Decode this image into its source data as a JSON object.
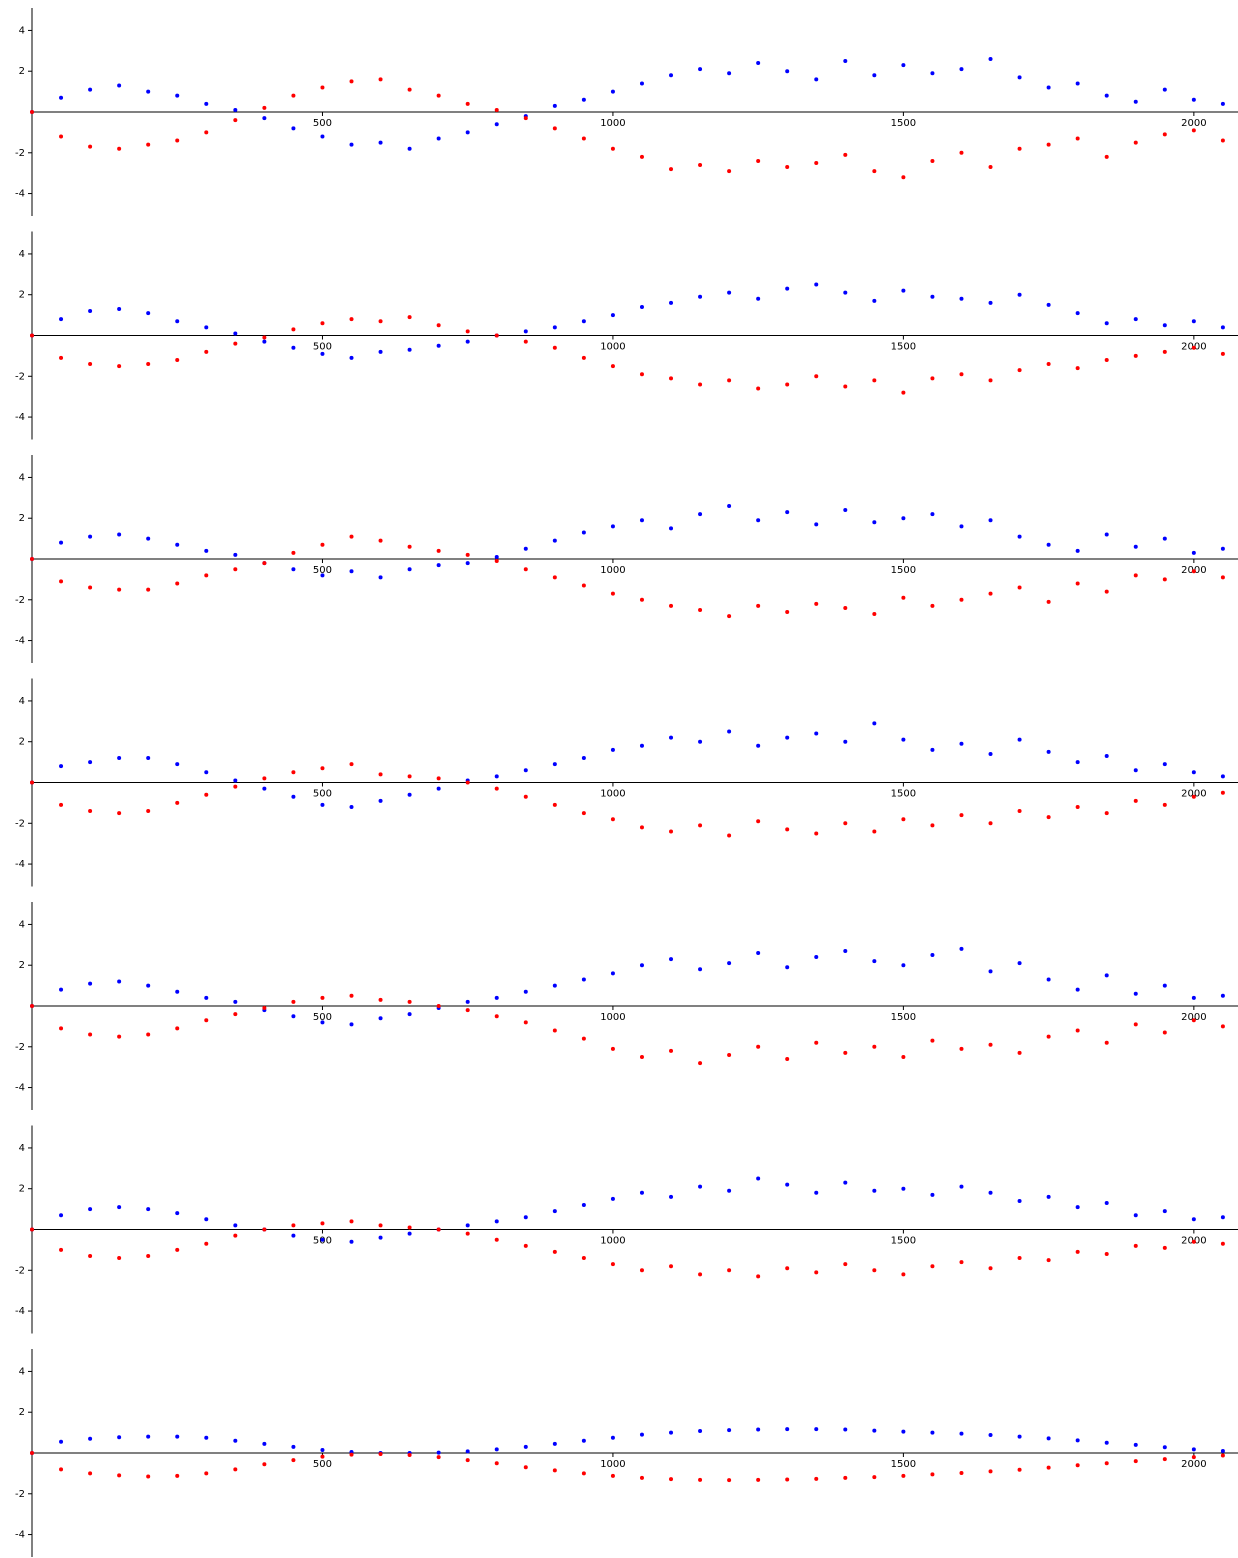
{
  "chart_data": [
    {
      "type": "scatter",
      "xlim": [
        0,
        2076
      ],
      "ylim": [
        -5.1,
        5.1
      ],
      "xticks": [
        500,
        1000,
        1500,
        2000
      ],
      "yticks": [
        -4,
        -2,
        2,
        4
      ],
      "x": [
        0,
        50,
        100,
        150,
        200,
        250,
        300,
        350,
        400,
        450,
        500,
        550,
        600,
        650,
        700,
        750,
        800,
        850,
        900,
        950,
        1000,
        1050,
        1100,
        1150,
        1200,
        1250,
        1300,
        1350,
        1400,
        1450,
        1500,
        1550,
        1600,
        1650,
        1700,
        1750,
        1800,
        1850,
        1900,
        1950,
        2000,
        2050
      ],
      "series": [
        {
          "color": "#0000ff",
          "values": [
            0,
            0.7,
            1.1,
            1.3,
            1.0,
            0.8,
            0.4,
            0.1,
            -0.3,
            -0.8,
            -1.2,
            -1.6,
            -1.5,
            -1.8,
            -1.3,
            -1.0,
            -0.6,
            -0.2,
            0.3,
            0.6,
            1.0,
            1.4,
            1.8,
            2.1,
            1.9,
            2.4,
            2.0,
            1.6,
            2.5,
            1.8,
            2.3,
            1.9,
            2.1,
            2.6,
            1.7,
            1.2,
            1.4,
            0.8,
            0.5,
            1.1,
            0.6,
            0.4
          ]
        },
        {
          "color": "#ff0000",
          "values": [
            0,
            -1.2,
            -1.7,
            -1.8,
            -1.6,
            -1.4,
            -1.0,
            -0.4,
            0.2,
            0.8,
            1.2,
            1.5,
            1.6,
            1.1,
            0.8,
            0.4,
            0.1,
            -0.3,
            -0.8,
            -1.3,
            -1.8,
            -2.2,
            -2.8,
            -2.6,
            -2.9,
            -2.4,
            -2.7,
            -2.5,
            -2.1,
            -2.9,
            -3.2,
            -2.4,
            -2.0,
            -2.7,
            -1.8,
            -1.6,
            -1.3,
            -2.2,
            -1.5,
            -1.1,
            -0.9,
            -1.4
          ]
        }
      ]
    },
    {
      "type": "scatter",
      "xlim": [
        0,
        2076
      ],
      "ylim": [
        -5.1,
        5.1
      ],
      "xticks": [
        500,
        1000,
        1500,
        2000
      ],
      "yticks": [
        -4,
        -2,
        2,
        4
      ],
      "x": [
        0,
        50,
        100,
        150,
        200,
        250,
        300,
        350,
        400,
        450,
        500,
        550,
        600,
        650,
        700,
        750,
        800,
        850,
        900,
        950,
        1000,
        1050,
        1100,
        1150,
        1200,
        1250,
        1300,
        1350,
        1400,
        1450,
        1500,
        1550,
        1600,
        1650,
        1700,
        1750,
        1800,
        1850,
        1900,
        1950,
        2000,
        2050
      ],
      "series": [
        {
          "color": "#0000ff",
          "values": [
            0,
            0.8,
            1.2,
            1.3,
            1.1,
            0.7,
            0.4,
            0.1,
            -0.3,
            -0.6,
            -0.9,
            -1.1,
            -0.8,
            -0.7,
            -0.5,
            -0.3,
            0,
            0.2,
            0.4,
            0.7,
            1.0,
            1.4,
            1.6,
            1.9,
            2.1,
            1.8,
            2.3,
            2.5,
            2.1,
            1.7,
            2.2,
            1.9,
            1.8,
            1.6,
            2.0,
            1.5,
            1.1,
            0.6,
            0.8,
            0.5,
            0.7,
            0.4
          ]
        },
        {
          "color": "#ff0000",
          "values": [
            0,
            -1.1,
            -1.4,
            -1.5,
            -1.4,
            -1.2,
            -0.8,
            -0.4,
            -0.1,
            0.3,
            0.6,
            0.8,
            0.7,
            0.9,
            0.5,
            0.2,
            0,
            -0.3,
            -0.6,
            -1.1,
            -1.5,
            -1.9,
            -2.1,
            -2.4,
            -2.2,
            -2.6,
            -2.4,
            -2.0,
            -2.5,
            -2.2,
            -2.8,
            -2.1,
            -1.9,
            -2.2,
            -1.7,
            -1.4,
            -1.6,
            -1.2,
            -1.0,
            -0.8,
            -0.6,
            -0.9
          ]
        }
      ]
    },
    {
      "type": "scatter",
      "xlim": [
        0,
        2076
      ],
      "ylim": [
        -5.1,
        5.1
      ],
      "xticks": [
        500,
        1000,
        1500,
        2000
      ],
      "yticks": [
        -4,
        -2,
        2,
        4
      ],
      "x": [
        0,
        50,
        100,
        150,
        200,
        250,
        300,
        350,
        400,
        450,
        500,
        550,
        600,
        650,
        700,
        750,
        800,
        850,
        900,
        950,
        1000,
        1050,
        1100,
        1150,
        1200,
        1250,
        1300,
        1350,
        1400,
        1450,
        1500,
        1550,
        1600,
        1650,
        1700,
        1750,
        1800,
        1850,
        1900,
        1950,
        2000,
        2050
      ],
      "series": [
        {
          "color": "#0000ff",
          "values": [
            0,
            0.8,
            1.1,
            1.2,
            1.0,
            0.7,
            0.4,
            0.2,
            -0.2,
            -0.5,
            -0.8,
            -0.6,
            -0.9,
            -0.5,
            -0.3,
            -0.2,
            0.1,
            0.5,
            0.9,
            1.3,
            1.6,
            1.9,
            1.5,
            2.2,
            2.6,
            1.9,
            2.3,
            1.7,
            2.4,
            1.8,
            2.0,
            2.2,
            1.6,
            1.9,
            1.1,
            0.7,
            0.4,
            1.2,
            0.6,
            1.0,
            0.3,
            0.5
          ]
        },
        {
          "color": "#ff0000",
          "values": [
            0,
            -1.1,
            -1.4,
            -1.5,
            -1.5,
            -1.2,
            -0.8,
            -0.5,
            -0.2,
            0.3,
            0.7,
            1.1,
            0.9,
            0.6,
            0.4,
            0.2,
            -0.1,
            -0.5,
            -0.9,
            -1.3,
            -1.7,
            -2.0,
            -2.3,
            -2.5,
            -2.8,
            -2.3,
            -2.6,
            -2.2,
            -2.4,
            -2.7,
            -1.9,
            -2.3,
            -2.0,
            -1.7,
            -1.4,
            -2.1,
            -1.2,
            -1.6,
            -0.8,
            -1.0,
            -0.6,
            -0.9
          ]
        }
      ]
    },
    {
      "type": "scatter",
      "xlim": [
        0,
        2076
      ],
      "ylim": [
        -5.1,
        5.1
      ],
      "xticks": [
        500,
        1000,
        1500,
        2000
      ],
      "yticks": [
        -4,
        -2,
        2,
        4
      ],
      "x": [
        0,
        50,
        100,
        150,
        200,
        250,
        300,
        350,
        400,
        450,
        500,
        550,
        600,
        650,
        700,
        750,
        800,
        850,
        900,
        950,
        1000,
        1050,
        1100,
        1150,
        1200,
        1250,
        1300,
        1350,
        1400,
        1450,
        1500,
        1550,
        1600,
        1650,
        1700,
        1750,
        1800,
        1850,
        1900,
        1950,
        2000,
        2050
      ],
      "series": [
        {
          "color": "#0000ff",
          "values": [
            0,
            0.8,
            1.0,
            1.2,
            1.2,
            0.9,
            0.5,
            0.1,
            -0.3,
            -0.7,
            -1.1,
            -1.2,
            -0.9,
            -0.6,
            -0.3,
            0.1,
            0.3,
            0.6,
            0.9,
            1.2,
            1.6,
            1.8,
            2.2,
            2.0,
            2.5,
            1.8,
            2.2,
            2.4,
            2.0,
            2.9,
            2.1,
            1.6,
            1.9,
            1.4,
            2.1,
            1.5,
            1.0,
            1.3,
            0.6,
            0.9,
            0.5,
            0.3
          ]
        },
        {
          "color": "#ff0000",
          "values": [
            0,
            -1.1,
            -1.4,
            -1.5,
            -1.4,
            -1.0,
            -0.6,
            -0.2,
            0.2,
            0.5,
            0.7,
            0.9,
            0.4,
            0.3,
            0.2,
            0,
            -0.3,
            -0.7,
            -1.1,
            -1.5,
            -1.8,
            -2.2,
            -2.4,
            -2.1,
            -2.6,
            -1.9,
            -2.3,
            -2.5,
            -2.0,
            -2.4,
            -1.8,
            -2.1,
            -1.6,
            -2.0,
            -1.4,
            -1.7,
            -1.2,
            -1.5,
            -0.9,
            -1.1,
            -0.7,
            -0.5
          ]
        }
      ]
    },
    {
      "type": "scatter",
      "xlim": [
        0,
        2076
      ],
      "ylim": [
        -5.1,
        5.1
      ],
      "xticks": [
        500,
        1000,
        1500,
        2000
      ],
      "yticks": [
        -4,
        -2,
        2,
        4
      ],
      "x": [
        0,
        50,
        100,
        150,
        200,
        250,
        300,
        350,
        400,
        450,
        500,
        550,
        600,
        650,
        700,
        750,
        800,
        850,
        900,
        950,
        1000,
        1050,
        1100,
        1150,
        1200,
        1250,
        1300,
        1350,
        1400,
        1450,
        1500,
        1550,
        1600,
        1650,
        1700,
        1750,
        1800,
        1850,
        1900,
        1950,
        2000,
        2050
      ],
      "series": [
        {
          "color": "#0000ff",
          "values": [
            0,
            0.8,
            1.1,
            1.2,
            1.0,
            0.7,
            0.4,
            0.2,
            -0.2,
            -0.5,
            -0.8,
            -0.9,
            -0.6,
            -0.4,
            -0.1,
            0.2,
            0.4,
            0.7,
            1.0,
            1.3,
            1.6,
            2.0,
            2.3,
            1.8,
            2.1,
            2.6,
            1.9,
            2.4,
            2.7,
            2.2,
            2.0,
            2.5,
            2.8,
            1.7,
            2.1,
            1.3,
            0.8,
            1.5,
            0.6,
            1.0,
            0.4,
            0.5
          ]
        },
        {
          "color": "#ff0000",
          "values": [
            0,
            -1.1,
            -1.4,
            -1.5,
            -1.4,
            -1.1,
            -0.7,
            -0.4,
            -0.1,
            0.2,
            0.4,
            0.5,
            0.3,
            0.2,
            0,
            -0.2,
            -0.5,
            -0.8,
            -1.2,
            -1.6,
            -2.1,
            -2.5,
            -2.2,
            -2.8,
            -2.4,
            -2.0,
            -2.6,
            -1.8,
            -2.3,
            -2.0,
            -2.5,
            -1.7,
            -2.1,
            -1.9,
            -2.3,
            -1.5,
            -1.2,
            -1.8,
            -0.9,
            -1.3,
            -0.7,
            -1.0
          ]
        }
      ]
    },
    {
      "type": "scatter",
      "xlim": [
        0,
        2076
      ],
      "ylim": [
        -5.1,
        5.1
      ],
      "xticks": [
        500,
        1000,
        1500,
        2000
      ],
      "yticks": [
        -4,
        -2,
        2,
        4
      ],
      "x": [
        0,
        50,
        100,
        150,
        200,
        250,
        300,
        350,
        400,
        450,
        500,
        550,
        600,
        650,
        700,
        750,
        800,
        850,
        900,
        950,
        1000,
        1050,
        1100,
        1150,
        1200,
        1250,
        1300,
        1350,
        1400,
        1450,
        1500,
        1550,
        1600,
        1650,
        1700,
        1750,
        1800,
        1850,
        1900,
        1950,
        2000,
        2050
      ],
      "series": [
        {
          "color": "#0000ff",
          "values": [
            0,
            0.7,
            1.0,
            1.1,
            1.0,
            0.8,
            0.5,
            0.2,
            0,
            -0.3,
            -0.5,
            -0.6,
            -0.4,
            -0.2,
            0,
            0.2,
            0.4,
            0.6,
            0.9,
            1.2,
            1.5,
            1.8,
            1.6,
            2.1,
            1.9,
            2.5,
            2.2,
            1.8,
            2.3,
            1.9,
            2.0,
            1.7,
            2.1,
            1.8,
            1.4,
            1.6,
            1.1,
            1.3,
            0.7,
            0.9,
            0.5,
            0.6
          ]
        },
        {
          "color": "#ff0000",
          "values": [
            0,
            -1.0,
            -1.3,
            -1.4,
            -1.3,
            -1.0,
            -0.7,
            -0.3,
            0,
            0.2,
            0.3,
            0.4,
            0.2,
            0.1,
            0,
            -0.2,
            -0.5,
            -0.8,
            -1.1,
            -1.4,
            -1.7,
            -2.0,
            -1.8,
            -2.2,
            -2.0,
            -2.3,
            -1.9,
            -2.1,
            -1.7,
            -2.0,
            -2.2,
            -1.8,
            -1.6,
            -1.9,
            -1.4,
            -1.5,
            -1.1,
            -1.2,
            -0.8,
            -0.9,
            -0.6,
            -0.7
          ]
        }
      ]
    },
    {
      "type": "scatter",
      "xlim": [
        0,
        2076
      ],
      "ylim": [
        -5.1,
        5.1
      ],
      "xticks": [
        500,
        1000,
        1500,
        2000
      ],
      "yticks": [
        -4,
        -2,
        2,
        4
      ],
      "x": [
        0,
        50,
        100,
        150,
        200,
        250,
        300,
        350,
        400,
        450,
        500,
        550,
        600,
        650,
        700,
        750,
        800,
        850,
        900,
        950,
        1000,
        1050,
        1100,
        1150,
        1200,
        1250,
        1300,
        1350,
        1400,
        1450,
        1500,
        1550,
        1600,
        1650,
        1700,
        1750,
        1800,
        1850,
        1900,
        1950,
        2000,
        2050
      ],
      "series": [
        {
          "color": "#0000ff",
          "values": [
            0,
            0.55,
            0.7,
            0.77,
            0.8,
            0.8,
            0.75,
            0.6,
            0.45,
            0.3,
            0.15,
            0.05,
            0,
            0,
            0.02,
            0.08,
            0.18,
            0.3,
            0.45,
            0.6,
            0.75,
            0.9,
            1.0,
            1.08,
            1.12,
            1.15,
            1.17,
            1.17,
            1.15,
            1.1,
            1.05,
            1.0,
            0.95,
            0.88,
            0.8,
            0.72,
            0.62,
            0.5,
            0.4,
            0.28,
            0.18,
            0.1
          ]
        },
        {
          "color": "#ff0000",
          "values": [
            0,
            -0.8,
            -1.0,
            -1.1,
            -1.15,
            -1.12,
            -1.0,
            -0.8,
            -0.55,
            -0.35,
            -0.18,
            -0.08,
            -0.05,
            -0.1,
            -0.2,
            -0.35,
            -0.5,
            -0.7,
            -0.85,
            -1.0,
            -1.12,
            -1.22,
            -1.28,
            -1.32,
            -1.33,
            -1.32,
            -1.3,
            -1.27,
            -1.22,
            -1.18,
            -1.12,
            -1.05,
            -0.98,
            -0.9,
            -0.82,
            -0.72,
            -0.6,
            -0.5,
            -0.4,
            -0.3,
            -0.2,
            -0.12
          ]
        }
      ]
    }
  ]
}
